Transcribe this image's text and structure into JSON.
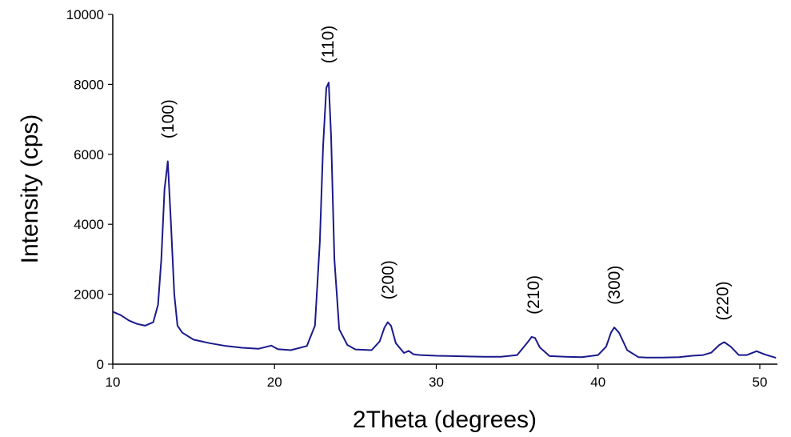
{
  "chart_data": {
    "type": "line",
    "title": "",
    "xlabel": "2Theta (degrees)",
    "ylabel": "Intensity (cps)",
    "xlim": [
      10,
      51
    ],
    "ylim": [
      0,
      10000
    ],
    "x_ticks": [
      10,
      20,
      30,
      40,
      50
    ],
    "y_ticks": [
      0,
      2000,
      4000,
      6000,
      8000,
      10000
    ],
    "grid": false,
    "legend": "none",
    "line_color": "#1a1a8c",
    "series": [
      {
        "x": [
          10,
          10.5,
          11,
          11.5,
          12,
          12.5,
          12.8,
          13.0,
          13.2,
          13.4,
          13.6,
          13.8,
          14.0,
          14.3,
          15,
          16,
          17,
          18,
          19,
          19.8,
          20.2,
          21,
          22,
          22.5,
          22.8,
          23.0,
          23.2,
          23.35,
          23.5,
          23.7,
          24.0,
          24.5,
          25,
          26,
          26.5,
          26.8,
          27.0,
          27.2,
          27.5,
          28,
          28.3,
          28.6,
          29,
          30,
          31,
          32,
          33,
          34,
          35,
          35.6,
          35.9,
          36.1,
          36.4,
          37,
          38,
          39,
          40,
          40.5,
          40.8,
          41.0,
          41.3,
          41.8,
          42.5,
          43,
          44,
          45,
          45.8,
          46.5,
          47,
          47.5,
          47.8,
          48.2,
          48.7,
          49.2,
          49.8,
          50.3,
          51
        ],
        "y": [
          1500,
          1400,
          1250,
          1150,
          1100,
          1200,
          1700,
          3000,
          5000,
          5800,
          4000,
          2000,
          1100,
          900,
          700,
          600,
          520,
          470,
          440,
          530,
          430,
          400,
          520,
          1100,
          3500,
          6200,
          7900,
          8050,
          6500,
          3000,
          1000,
          550,
          420,
          400,
          650,
          1050,
          1200,
          1100,
          600,
          320,
          380,
          280,
          260,
          240,
          230,
          220,
          210,
          210,
          260,
          600,
          780,
          750,
          480,
          230,
          210,
          200,
          260,
          500,
          900,
          1050,
          900,
          400,
          200,
          190,
          190,
          200,
          240,
          260,
          330,
          550,
          630,
          500,
          260,
          260,
          370,
          280,
          180
        ]
      }
    ],
    "annotations": [
      {
        "text": "(100)",
        "x": 13.4,
        "y": 6450
      },
      {
        "text": "(110)",
        "x": 23.3,
        "y": 8600
      },
      {
        "text": "(200)",
        "x": 27.0,
        "y": 1850
      },
      {
        "text": "(210)",
        "x": 36.0,
        "y": 1420
      },
      {
        "text": "(300)",
        "x": 41.0,
        "y": 1700
      },
      {
        "text": "(220)",
        "x": 47.7,
        "y": 1250
      }
    ]
  }
}
